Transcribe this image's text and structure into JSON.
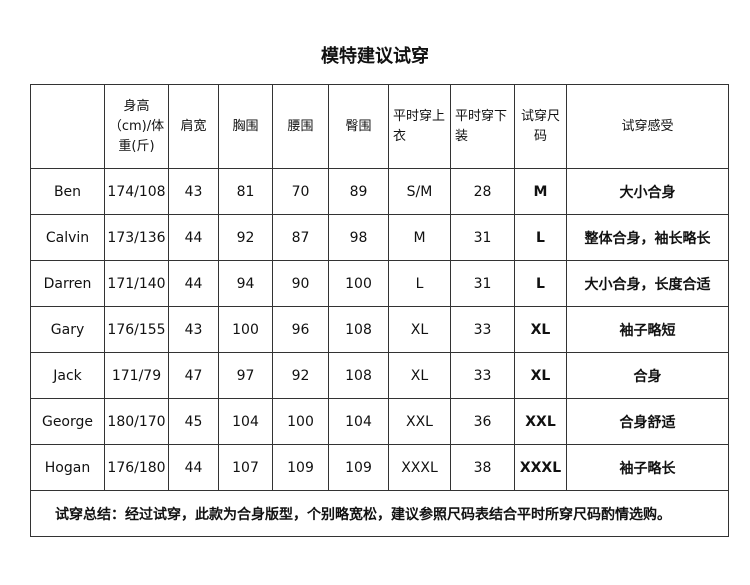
{
  "title": "模特建议试穿",
  "headers": [
    "",
    "身高（cm)/体重(斤)",
    "肩宽",
    "胸围",
    "腰围",
    "臀围",
    "平时穿上衣",
    "平时穿下装",
    "试穿尺码",
    "试穿感受"
  ],
  "rows": [
    [
      "Ben",
      "174/108",
      "43",
      "81",
      "70",
      "89",
      "S/M",
      "28",
      "M",
      "大小合身"
    ],
    [
      "Calvin",
      "173/136",
      "44",
      "92",
      "87",
      "98",
      "M",
      "31",
      "L",
      "整体合身，袖长略长"
    ],
    [
      "Darren",
      "171/140",
      "44",
      "94",
      "90",
      "100",
      "L",
      "31",
      "L",
      "大小合身，长度合适"
    ],
    [
      "Gary",
      "176/155",
      "43",
      "100",
      "96",
      "108",
      "XL",
      "33",
      "XL",
      "袖子略短"
    ],
    [
      "Jack",
      "171/79",
      "47",
      "97",
      "92",
      "108",
      "XL",
      "33",
      "XL",
      "合身"
    ],
    [
      "George",
      "180/170",
      "45",
      "104",
      "100",
      "104",
      "XXL",
      "36",
      "XXL",
      "合身舒适"
    ],
    [
      "Hogan",
      "176/180",
      "44",
      "107",
      "109",
      "109",
      "XXXL",
      "38",
      "XXXL",
      "袖子略长"
    ]
  ],
  "summary": "试穿总结：经过试穿，此款为合身版型，个别略宽松，建议参照尺码表结合平时所穿尺码酌情选购。"
}
